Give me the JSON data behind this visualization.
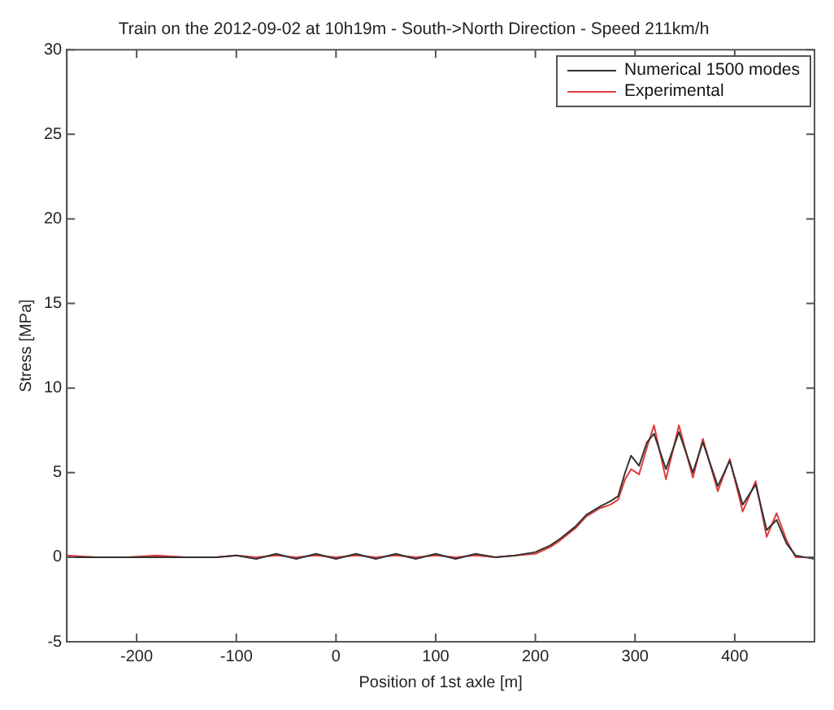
{
  "chart_data": {
    "type": "line",
    "title": "Train on the 2012-09-02 at 10h19m - South->North Direction - Speed 211km/h",
    "xlabel": "Position of 1st axle [m]",
    "ylabel": "Stress [MPa]",
    "xlim": [
      -270,
      480
    ],
    "xticks": [
      -200,
      -100,
      0,
      100,
      200,
      300,
      400
    ],
    "ylim": [
      -5,
      30
    ],
    "yticks": [
      -5,
      0,
      5,
      10,
      15,
      20,
      25,
      30
    ],
    "grid": false,
    "legend": "top right",
    "marker": "none",
    "line_style": "solid",
    "series": [
      {
        "name": "Numerical 1500 modes",
        "color": "#333333",
        "x": [
          -270,
          -240,
          -210,
          -180,
          -150,
          -120,
          -100,
          -80,
          -60,
          -40,
          -20,
          0,
          20,
          40,
          60,
          80,
          100,
          120,
          140,
          160,
          180,
          200,
          215,
          225,
          240,
          251,
          265,
          275,
          283,
          290,
          296,
          304,
          312,
          319,
          331,
          344,
          358,
          368,
          383,
          395,
          408,
          421,
          432,
          442,
          452,
          461,
          470,
          480
        ],
        "values": [
          0,
          0,
          0,
          0,
          0,
          0,
          0.1,
          -0.1,
          0.2,
          -0.1,
          0.2,
          -0.1,
          0.2,
          -0.1,
          0.2,
          -0.1,
          0.2,
          -0.1,
          0.2,
          0,
          0.1,
          0.3,
          0.7,
          1.1,
          1.8,
          2.5,
          3.0,
          3.3,
          3.6,
          5.0,
          6.0,
          5.4,
          6.8,
          7.3,
          5.2,
          7.4,
          5.0,
          6.8,
          4.2,
          5.7,
          3.1,
          4.3,
          1.6,
          2.2,
          0.8,
          0.1,
          0,
          -0.1
        ]
      },
      {
        "name": "Experimental",
        "color": "#e03c3c",
        "x": [
          -270,
          -240,
          -210,
          -180,
          -150,
          -120,
          -100,
          -80,
          -60,
          -40,
          -20,
          0,
          20,
          40,
          60,
          80,
          100,
          120,
          140,
          160,
          180,
          200,
          215,
          225,
          240,
          251,
          265,
          275,
          283,
          290,
          296,
          304,
          312,
          319,
          331,
          344,
          358,
          368,
          383,
          395,
          408,
          421,
          432,
          442,
          452,
          461,
          470,
          480
        ],
        "values": [
          0.1,
          0,
          0,
          0.1,
          0,
          0,
          0.1,
          0,
          0.1,
          0,
          0.1,
          0,
          0.1,
          0,
          0.1,
          0,
          0.1,
          0,
          0.1,
          0,
          0.1,
          0.2,
          0.6,
          1.0,
          1.7,
          2.4,
          2.9,
          3.1,
          3.4,
          4.6,
          5.2,
          4.9,
          6.5,
          7.8,
          4.6,
          7.8,
          4.7,
          7.0,
          3.9,
          5.8,
          2.7,
          4.5,
          1.2,
          2.6,
          1.0,
          0,
          0,
          0
        ]
      }
    ]
  }
}
